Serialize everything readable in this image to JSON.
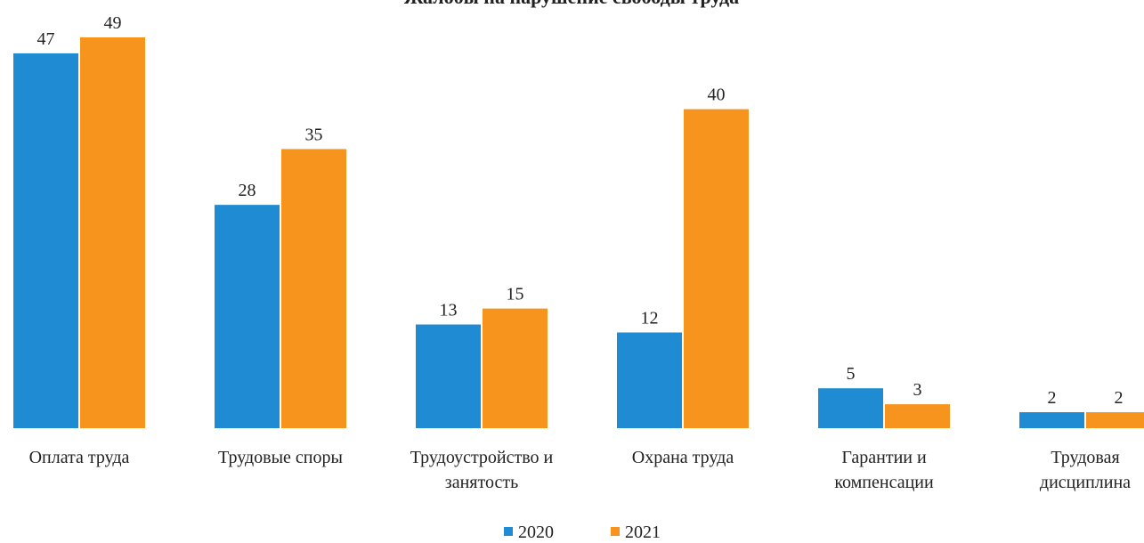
{
  "chart_data": {
    "type": "bar",
    "title": "Жалобы на нарушение свободы труда",
    "categories": [
      "Оплата труда",
      "Трудовые споры",
      "Трудоустройство и\nзанятость",
      "Охрана труда",
      "Гарантии и\nкомпенсации",
      "Трудовая\nдисциплина"
    ],
    "series": [
      {
        "name": "2020",
        "color": "#1f8bd2",
        "values": [
          47,
          28,
          13,
          12,
          5,
          2
        ]
      },
      {
        "name": "2021",
        "color": "#f7941d",
        "values": [
          49,
          35,
          15,
          40,
          3,
          2
        ]
      }
    ],
    "legend": "bottom"
  }
}
